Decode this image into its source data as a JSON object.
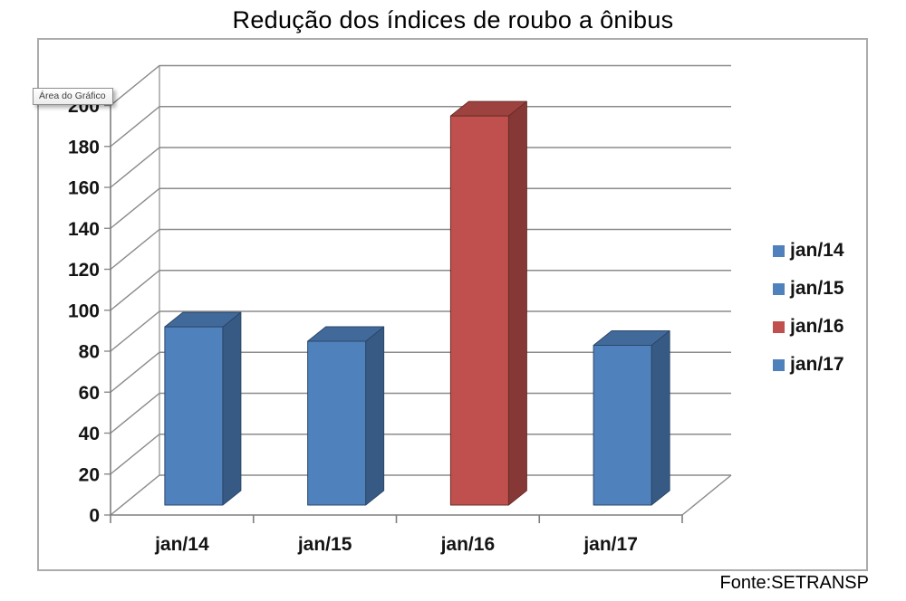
{
  "chart_data": {
    "type": "bar",
    "projection": "3d",
    "title": "Redução dos índices de roubo a ônibus",
    "categories": [
      "jan/14",
      "jan/15",
      "jan/16",
      "jan/17"
    ],
    "values": [
      87,
      80,
      190,
      78
    ],
    "bar_colors": [
      "#4F81BD",
      "#4F81BD",
      "#C0504D",
      "#4F81BD"
    ],
    "xlabel": "",
    "ylabel": "",
    "ylim": [
      0,
      200
    ],
    "ytick_step": 20,
    "grid": true,
    "legend": {
      "position": "right",
      "entries": [
        {
          "label": "jan/14",
          "color": "#4F81BD"
        },
        {
          "label": "jan/15",
          "color": "#4F81BD"
        },
        {
          "label": "jan/16",
          "color": "#C0504D"
        },
        {
          "label": "jan/17",
          "color": "#4F81BD"
        }
      ]
    }
  },
  "overlay": {
    "tooltip_label": "Área do Gráfico"
  },
  "caption": {
    "source": "Fonte:SETRANSP"
  },
  "colors": {
    "accent_blue": "#4F81BD",
    "accent_red": "#C0504D",
    "gridline": "#8B8B8B",
    "axis": "#7F7F7F",
    "chart_border": "#ACACAC"
  }
}
